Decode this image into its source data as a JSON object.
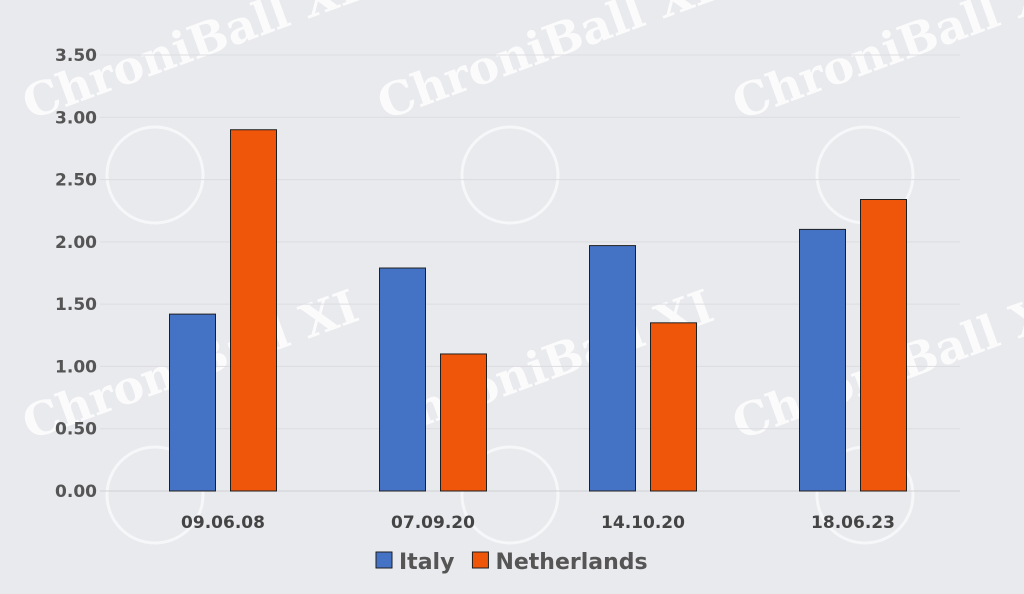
{
  "watermark": "ChroniBall XI",
  "chart_data": {
    "type": "bar",
    "title": "",
    "xlabel": "",
    "ylabel": "",
    "categories": [
      "09.06.08",
      "07.09.20",
      "14.10.20",
      "18.06.23"
    ],
    "series": [
      {
        "name": "Italy",
        "color": "#4472c4",
        "values": [
          1.42,
          1.79,
          1.97,
          2.1
        ]
      },
      {
        "name": "Netherlands",
        "color": "#f0560a",
        "values": [
          2.9,
          1.1,
          1.35,
          2.34
        ]
      }
    ],
    "ylim": [
      0,
      3.5
    ],
    "yticks": [
      "0.00",
      "0.50",
      "1.00",
      "1.50",
      "2.00",
      "2.50",
      "3.00",
      "3.50"
    ],
    "grid": true,
    "legend": "bottom"
  }
}
